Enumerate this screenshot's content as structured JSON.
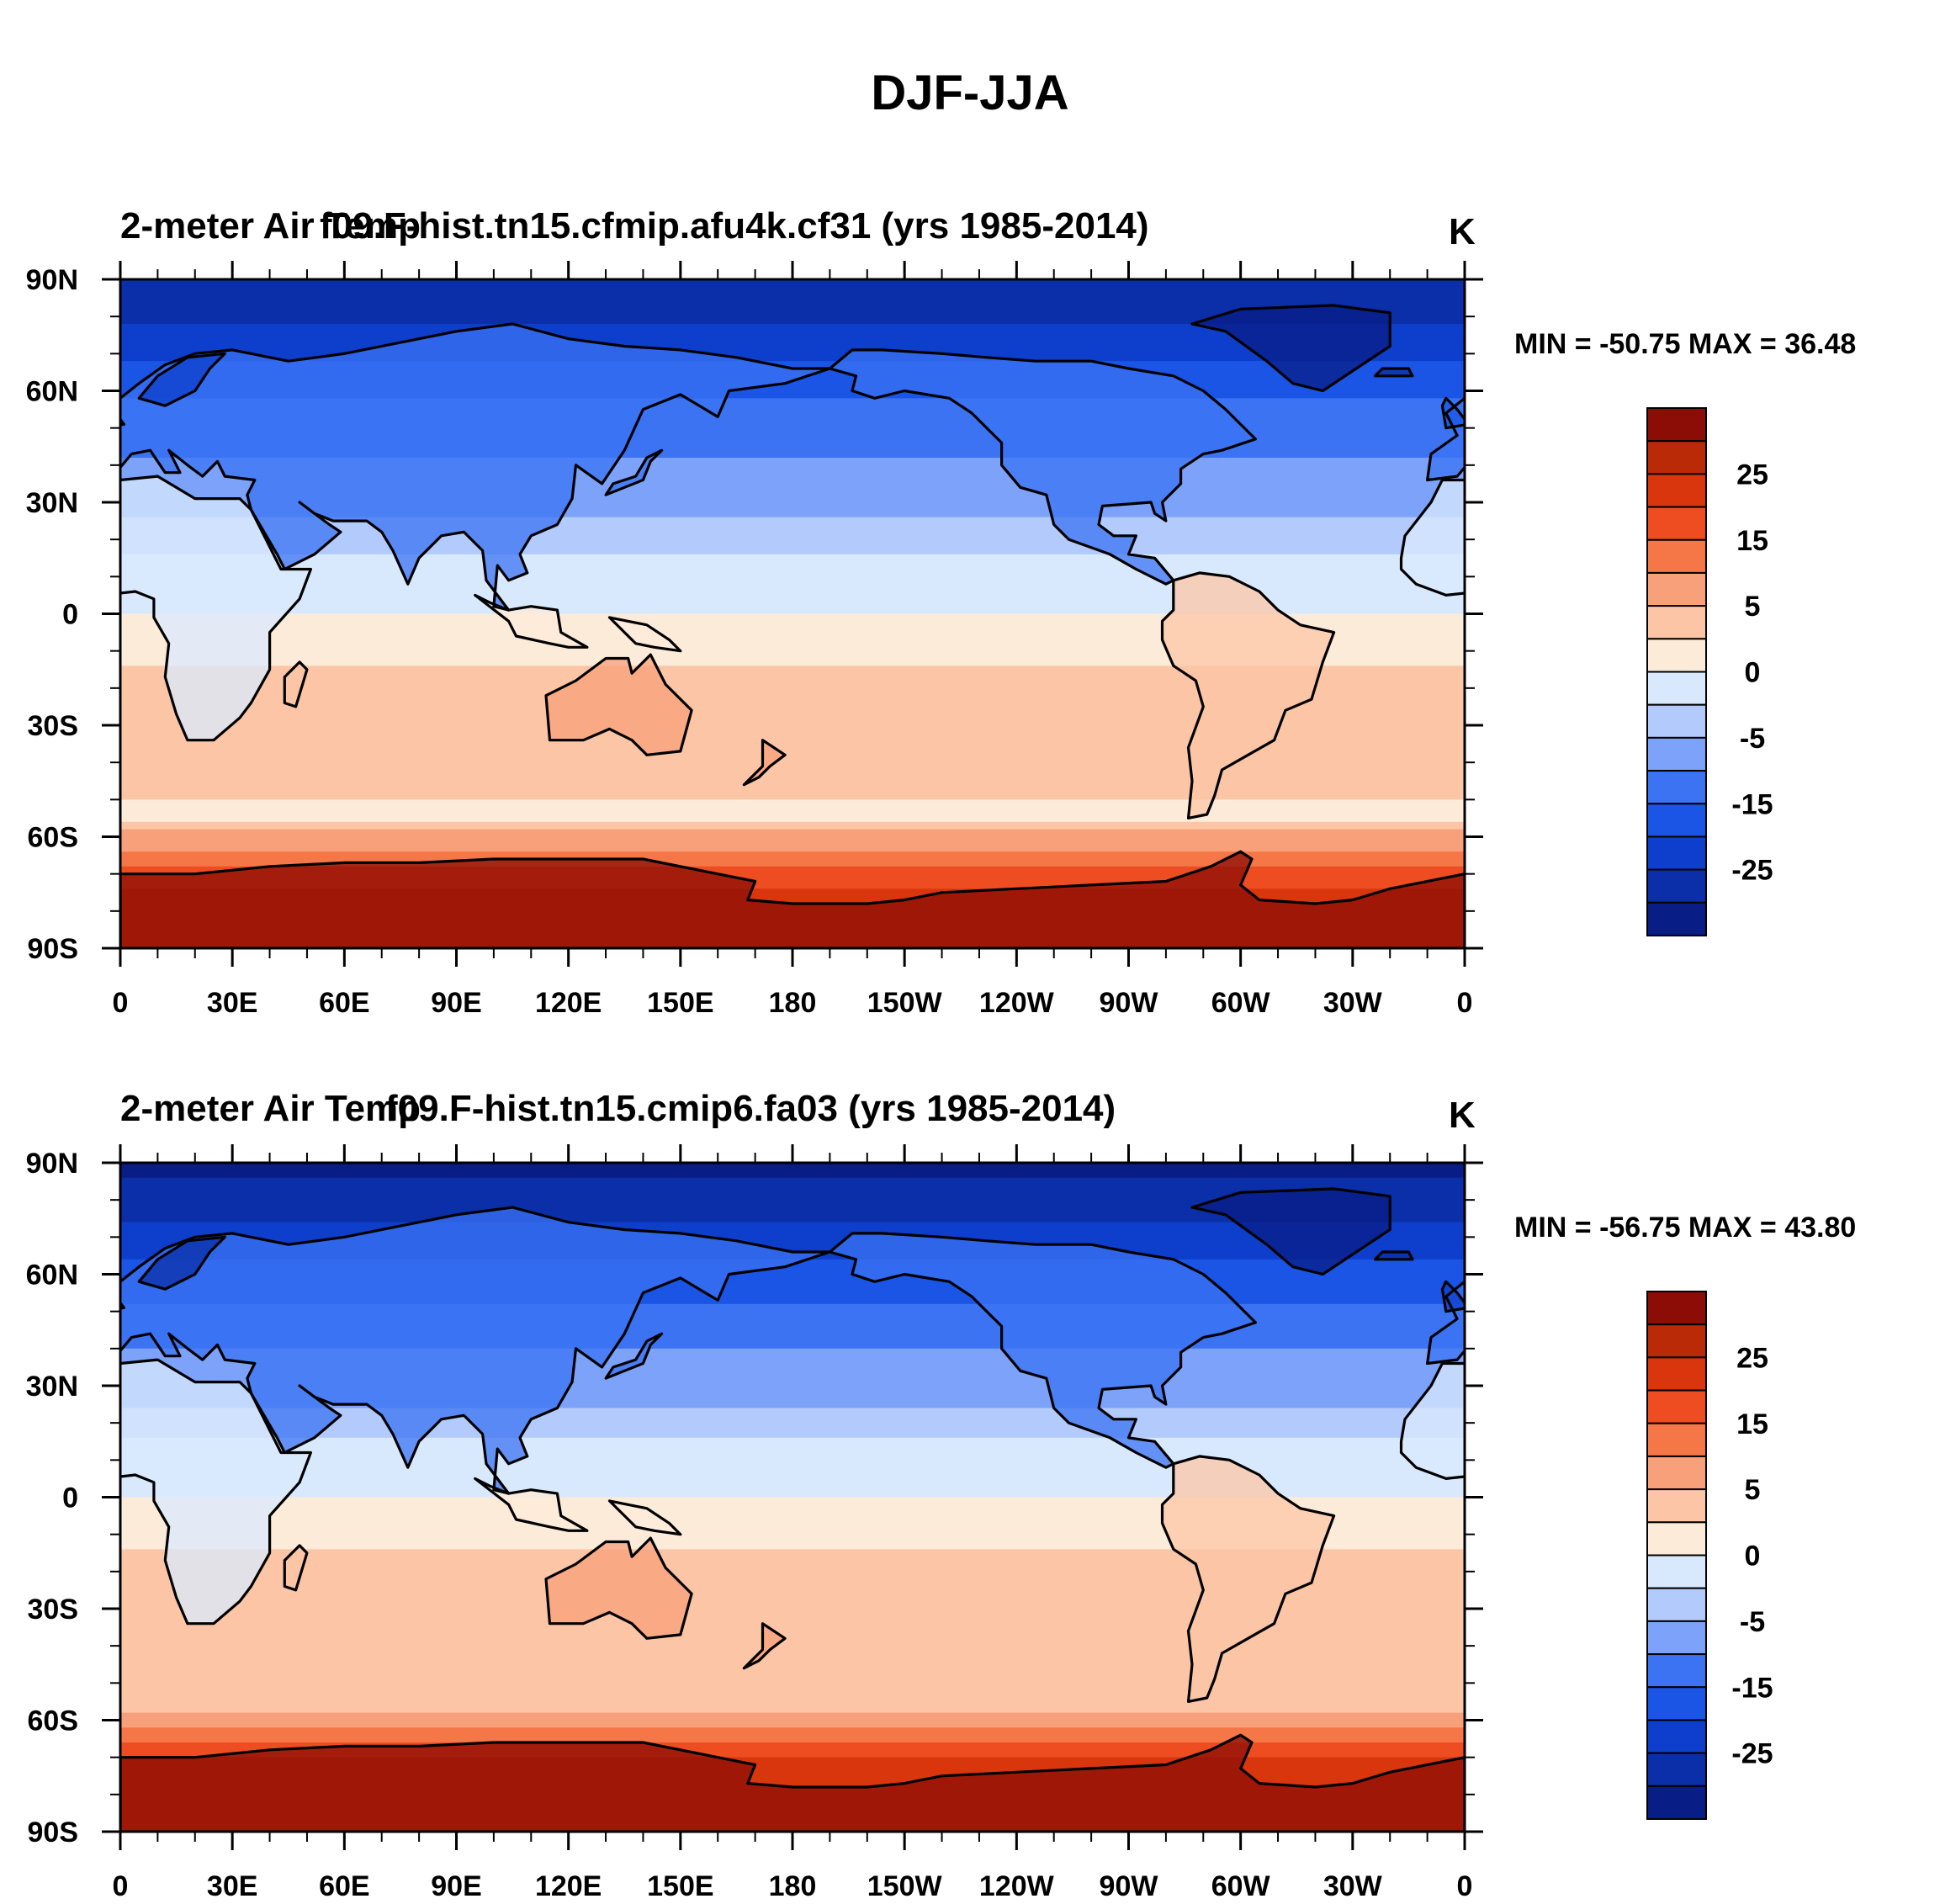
{
  "figure_title": "DJF-JJA",
  "chart_data": [
    {
      "type": "heatmap",
      "left_title": "2-meter Air Temp",
      "center_title": "f09.F-hist.tn15.cfmip.afu4k.cf31 (yrs 1985-2014)",
      "units": "K",
      "stats_text": "MIN = -50.75 MAX =  36.48",
      "min": -50.75,
      "max": 36.48,
      "xlabel": "",
      "ylabel": "",
      "x_ticks": [
        "0",
        "30E",
        "60E",
        "90E",
        "120E",
        "150E",
        "180",
        "150W",
        "120W",
        "90W",
        "60W",
        "30W",
        "0"
      ],
      "y_ticks": [
        "90N",
        "60N",
        "30N",
        "0",
        "30S",
        "60S",
        "90S"
      ],
      "zonal_profile": [
        {
          "lat": 90,
          "value": -30
        },
        {
          "lat": 75,
          "value": -24
        },
        {
          "lat": 60,
          "value": -16
        },
        {
          "lat": 45,
          "value": -11
        },
        {
          "lat": 30,
          "value": -6
        },
        {
          "lat": 15,
          "value": -2
        },
        {
          "lat": 0,
          "value": 0
        },
        {
          "lat": -15,
          "value": 2
        },
        {
          "lat": -30,
          "value": 4
        },
        {
          "lat": -45,
          "value": 3
        },
        {
          "lat": -55,
          "value": 1
        },
        {
          "lat": -62,
          "value": 8
        },
        {
          "lat": -70,
          "value": 18
        },
        {
          "lat": -80,
          "value": 23
        },
        {
          "lat": -90,
          "value": 22
        }
      ]
    },
    {
      "type": "heatmap",
      "left_title": "2-meter Air Temp",
      "center_title": "f09.F-hist.tn15.cmip6.fa03 (yrs 1985-2014)",
      "units": "K",
      "stats_text": "MIN = -56.75 MAX =  43.80",
      "min": -56.75,
      "max": 43.8,
      "xlabel": "",
      "ylabel": "",
      "x_ticks": [
        "0",
        "30E",
        "60E",
        "90E",
        "120E",
        "150E",
        "180",
        "150W",
        "120W",
        "90W",
        "60W",
        "30W",
        "0"
      ],
      "y_ticks": [
        "90N",
        "60N",
        "30N",
        "0",
        "30S",
        "60S",
        "90S"
      ],
      "zonal_profile": [
        {
          "lat": 90,
          "value": -32
        },
        {
          "lat": 75,
          "value": -26
        },
        {
          "lat": 60,
          "value": -18
        },
        {
          "lat": 45,
          "value": -12
        },
        {
          "lat": 30,
          "value": -7
        },
        {
          "lat": 15,
          "value": -2
        },
        {
          "lat": 0,
          "value": 0
        },
        {
          "lat": -15,
          "value": 2
        },
        {
          "lat": -30,
          "value": 4
        },
        {
          "lat": -45,
          "value": 3
        },
        {
          "lat": -55,
          "value": 2
        },
        {
          "lat": -62,
          "value": 10
        },
        {
          "lat": -70,
          "value": 20
        },
        {
          "lat": -80,
          "value": 25
        },
        {
          "lat": -90,
          "value": 24
        }
      ]
    }
  ],
  "colorbar": {
    "levels": [
      -35,
      -30,
      -25,
      -20,
      -15,
      -10,
      -5,
      -2,
      0,
      2,
      5,
      10,
      15,
      20,
      25,
      30,
      35
    ],
    "labels": [
      "25",
      "15",
      "5",
      "0",
      "-5",
      "-15",
      "-25"
    ],
    "colors": [
      "#081d86",
      "#0b2fa8",
      "#0d3fcc",
      "#1a55e6",
      "#3b73f3",
      "#7da2f9",
      "#b2cbfc",
      "#d9e9fd",
      "#fdebd9",
      "#fcc6a6",
      "#f8a07a",
      "#f57647",
      "#ed4d21",
      "#d9360d",
      "#bb2a07",
      "#8b0d05"
    ]
  },
  "land_color": "#000000"
}
